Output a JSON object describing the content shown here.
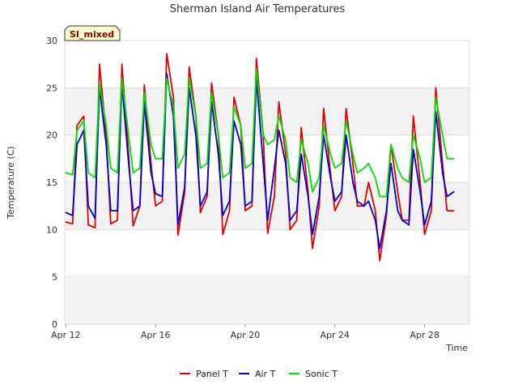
{
  "chart_data": {
    "type": "line",
    "title": "Sherman Island Air Temperatures",
    "xlabel": "Time",
    "ylabel": "Temperature (C)",
    "badge": "SI_mixed",
    "ylim": [
      0,
      30
    ],
    "yticks": [
      0,
      5,
      10,
      15,
      20,
      25,
      30
    ],
    "xlim": [
      "Apr 12",
      "Apr 30"
    ],
    "xticks": [
      "Apr 12",
      "Apr 16",
      "Apr 20",
      "Apr 24",
      "Apr 28"
    ],
    "grid": true,
    "legend_position": "bottom",
    "x_unit": "day of April",
    "series": [
      {
        "name": "Panel T",
        "color": "#e00000",
        "x": [
          12.0,
          12.3,
          12.5,
          12.8,
          13.0,
          13.3,
          13.5,
          13.8,
          14.0,
          14.3,
          14.5,
          14.8,
          15.0,
          15.3,
          15.5,
          15.8,
          16.0,
          16.3,
          16.5,
          16.8,
          17.0,
          17.3,
          17.5,
          17.8,
          18.0,
          18.3,
          18.5,
          18.8,
          19.0,
          19.3,
          19.5,
          19.8,
          20.0,
          20.3,
          20.5,
          20.8,
          21.0,
          21.3,
          21.5,
          21.8,
          22.0,
          22.3,
          22.5,
          22.8,
          23.0,
          23.3,
          23.5,
          23.8,
          24.0,
          24.3,
          24.5,
          24.8,
          25.0,
          25.3,
          25.5,
          25.8,
          26.0,
          26.3,
          26.5,
          26.8,
          27.0,
          27.3,
          27.5,
          27.8,
          28.0,
          28.3,
          28.5,
          28.8,
          29.0,
          29.3
        ],
        "y": [
          10.8,
          10.6,
          21.0,
          22.0,
          10.5,
          10.2,
          27.5,
          20.0,
          10.6,
          11.0,
          27.5,
          18.0,
          10.4,
          12.5,
          25.3,
          17.0,
          12.5,
          13.0,
          28.6,
          24.0,
          9.4,
          14.0,
          27.2,
          22.0,
          11.8,
          13.5,
          25.5,
          20.0,
          9.5,
          12.0,
          24.0,
          21.0,
          12.0,
          12.5,
          28.1,
          20.0,
          9.6,
          13.5,
          23.5,
          18.0,
          10.0,
          11.0,
          20.8,
          14.0,
          8.0,
          12.5,
          22.8,
          16.0,
          12.0,
          13.5,
          22.8,
          17.0,
          12.5,
          12.5,
          15.0,
          12.0,
          6.7,
          11.5,
          19.0,
          14.0,
          11.0,
          11.0,
          22.0,
          15.0,
          9.5,
          12.0,
          25.0,
          17.0,
          12.0,
          12.0
        ]
      },
      {
        "name": "Air T",
        "color": "#0000d0",
        "x": [
          12.0,
          12.3,
          12.5,
          12.8,
          13.0,
          13.3,
          13.5,
          13.8,
          14.0,
          14.3,
          14.5,
          14.8,
          15.0,
          15.3,
          15.5,
          15.8,
          16.0,
          16.3,
          16.5,
          16.8,
          17.0,
          17.3,
          17.5,
          17.8,
          18.0,
          18.3,
          18.5,
          18.8,
          19.0,
          19.3,
          19.5,
          19.8,
          20.0,
          20.3,
          20.5,
          20.8,
          21.0,
          21.3,
          21.5,
          21.8,
          22.0,
          22.3,
          22.5,
          22.8,
          23.0,
          23.3,
          23.5,
          23.8,
          24.0,
          24.3,
          24.5,
          24.8,
          25.0,
          25.3,
          25.5,
          25.8,
          26.0,
          26.3,
          26.5,
          26.8,
          27.0,
          27.3,
          27.5,
          27.8,
          28.0,
          28.3,
          28.5,
          28.8,
          29.0,
          29.3
        ],
        "y": [
          11.8,
          11.5,
          19.0,
          20.5,
          12.5,
          11.2,
          25.0,
          19.0,
          12.0,
          12.0,
          25.5,
          17.0,
          12.0,
          12.5,
          23.5,
          16.0,
          13.8,
          13.5,
          26.5,
          22.0,
          10.5,
          14.5,
          25.0,
          20.0,
          12.5,
          14.0,
          23.5,
          18.0,
          11.5,
          13.0,
          21.5,
          19.0,
          12.5,
          13.0,
          26.0,
          17.0,
          11.0,
          16.5,
          20.5,
          17.0,
          11.0,
          12.0,
          18.0,
          13.5,
          9.5,
          13.5,
          20.0,
          15.5,
          13.0,
          14.0,
          20.0,
          15.0,
          13.0,
          12.5,
          13.0,
          11.0,
          8.0,
          12.0,
          17.0,
          12.0,
          11.0,
          10.5,
          18.5,
          14.0,
          10.5,
          13.0,
          22.5,
          16.0,
          13.5,
          14.0
        ]
      },
      {
        "name": "Sonic T",
        "color": "#00e000",
        "x": [
          12.0,
          12.3,
          12.5,
          12.8,
          13.0,
          13.3,
          13.5,
          13.8,
          14.0,
          14.3,
          14.5,
          14.8,
          15.0,
          15.3,
          15.5,
          15.8,
          16.0,
          16.3,
          16.5,
          16.8,
          17.0,
          17.3,
          17.5,
          17.8,
          18.0,
          18.3,
          18.5,
          18.8,
          19.0,
          19.3,
          19.5,
          19.8,
          20.0,
          20.3,
          20.5,
          20.8,
          21.0,
          21.3,
          21.5,
          21.8,
          22.0,
          22.3,
          22.5,
          22.8,
          23.0,
          23.3,
          23.5,
          23.8,
          24.0,
          24.3,
          24.5,
          24.8,
          25.0,
          25.3,
          25.5,
          25.8,
          26.0,
          26.3,
          26.5,
          26.8,
          27.0,
          27.3,
          27.5,
          27.8,
          28.0,
          28.3,
          28.5,
          28.8,
          29.0,
          29.3
        ],
        "y": [
          16.0,
          15.8,
          20.5,
          21.5,
          16.0,
          15.5,
          25.5,
          21.0,
          16.5,
          16.0,
          26.0,
          20.0,
          16.0,
          16.5,
          24.5,
          19.0,
          17.5,
          17.5,
          26.0,
          23.0,
          16.5,
          18.0,
          26.0,
          22.0,
          16.5,
          17.0,
          24.5,
          20.0,
          15.5,
          16.0,
          23.0,
          21.0,
          16.5,
          17.0,
          27.0,
          20.0,
          19.0,
          19.5,
          22.0,
          19.5,
          15.5,
          15.0,
          19.5,
          17.0,
          14.0,
          15.5,
          21.0,
          18.0,
          16.5,
          17.0,
          21.5,
          18.0,
          16.0,
          16.5,
          17.0,
          15.5,
          13.5,
          13.5,
          19.0,
          16.5,
          15.5,
          15.0,
          20.0,
          17.5,
          15.0,
          15.5,
          24.0,
          20.0,
          17.5,
          17.5
        ]
      }
    ]
  }
}
